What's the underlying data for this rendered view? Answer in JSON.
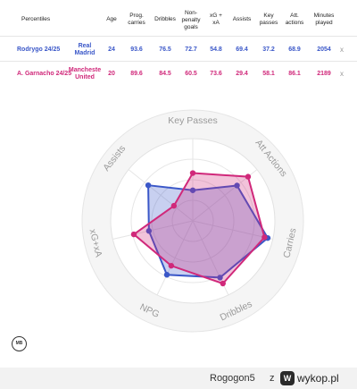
{
  "table": {
    "headers": {
      "percentiles": "Percentiles",
      "age": "Age",
      "prog_carries": [
        "Prog.",
        "carries"
      ],
      "dribbles": "Dribbles",
      "npg": [
        "Non-",
        "penalty",
        "goals"
      ],
      "xg_xa": [
        "xG +",
        "xA"
      ],
      "assists": "Assists",
      "key_passes": [
        "Key",
        "passes"
      ],
      "att_actions": [
        "Att.",
        "actions"
      ],
      "minutes": [
        "Minutes",
        "played"
      ]
    },
    "rows": [
      {
        "name": "Rodrygo 24/25",
        "team": [
          "Real",
          "Madrid"
        ],
        "age": "24",
        "prog_carries": "93.6",
        "dribbles": "76.5",
        "npg": "72.7",
        "xg_xa": "54.8",
        "assists": "69.4",
        "key_passes": "37.2",
        "att_actions": "68.9",
        "minutes": "2054",
        "close": "x",
        "color": "#3a57c8"
      },
      {
        "name": "A. Garnacho 24/25",
        "team": [
          "Mancheste",
          "United"
        ],
        "age": "20",
        "prog_carries": "89.6",
        "dribbles": "84.5",
        "npg": "60.5",
        "xg_xa": "73.6",
        "assists": "29.4",
        "key_passes": "58.1",
        "att_actions": "86.1",
        "minutes": "2189",
        "close": "x",
        "color": "#d0287a"
      }
    ]
  },
  "chart_data": {
    "type": "radar",
    "axes": [
      "Key Passes",
      "Att Actions",
      "Carries",
      "Dribbles",
      "NPG",
      "xG+xA",
      "Assists"
    ],
    "range": [
      0,
      100
    ],
    "series": [
      {
        "name": "Rodrygo 24/25",
        "values": [
          37.2,
          68.9,
          93.6,
          76.5,
          72.7,
          54.8,
          69.4
        ],
        "color": "#3a57c8"
      },
      {
        "name": "A. Garnacho 24/25",
        "values": [
          58.1,
          86.1,
          89.6,
          84.5,
          60.5,
          73.6,
          29.4
        ],
        "color": "#d0287a"
      }
    ]
  },
  "footer": {
    "user": "Rogogon5",
    "z": "z",
    "logo": "W",
    "site": "wykop.pl"
  },
  "logo_text": "MB"
}
